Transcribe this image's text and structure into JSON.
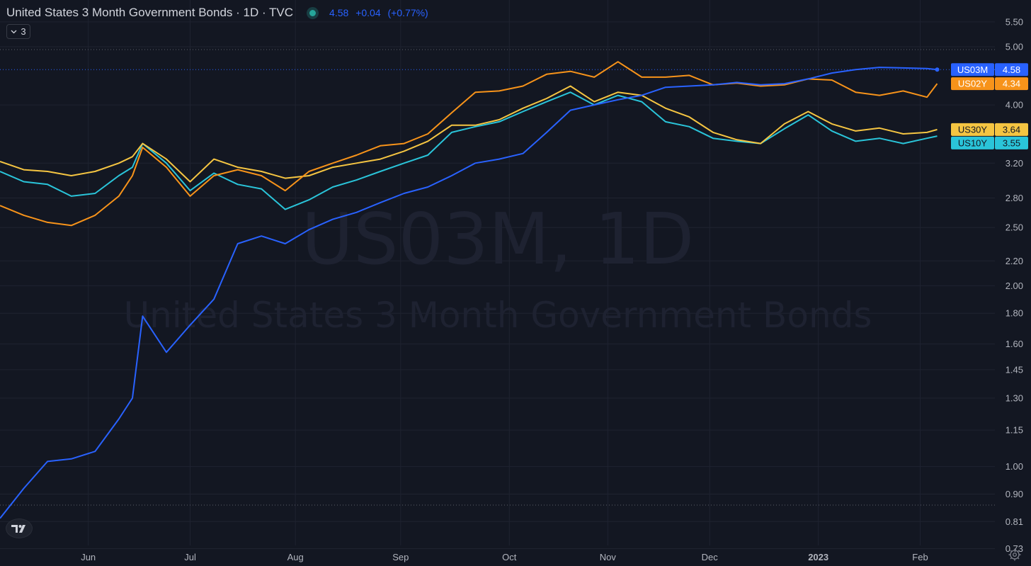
{
  "header": {
    "title": "United States 3 Month Government Bonds · 1D · TVC",
    "last": "4.58",
    "change": "+0.04",
    "change_pct": "(+0.77%)",
    "indicator_count": "3"
  },
  "watermark": {
    "symbol": "US03M, 1D",
    "name": "United States 3 Month Government Bonds"
  },
  "icons": {
    "status": "live-status-dot",
    "legend": "chevron-down-icon",
    "logo": "tradingview-logo",
    "settings": "gear-icon"
  },
  "chart_data": {
    "type": "line",
    "scale": "log",
    "ylim": [
      0.7,
      5.9
    ],
    "y_ticks": [
      "5.50",
      "5.00",
      "4.00",
      "3.20",
      "2.80",
      "2.50",
      "2.20",
      "2.00",
      "1.80",
      "1.60",
      "1.45",
      "1.30",
      "1.15",
      "1.00",
      "0.90",
      "0.81",
      "0.73"
    ],
    "x_ticks": [
      "Jun",
      "Jul",
      "Aug",
      "Sep",
      "Oct",
      "Nov",
      "Dec",
      "2023",
      "Feb"
    ],
    "x_range": [
      "2022-05-06",
      "2023-02-23"
    ],
    "x_tick_dates": [
      "2022-06-01",
      "2022-07-01",
      "2022-08-01",
      "2022-09-01",
      "2022-10-03",
      "2022-11-01",
      "2022-12-01",
      "2023-01-02",
      "2023-02-01"
    ],
    "x": [
      "2022-05-06",
      "2022-05-13",
      "2022-05-20",
      "2022-05-27",
      "2022-06-03",
      "2022-06-10",
      "2022-06-14",
      "2022-06-17",
      "2022-06-24",
      "2022-07-01",
      "2022-07-08",
      "2022-07-15",
      "2022-07-22",
      "2022-07-29",
      "2022-08-05",
      "2022-08-12",
      "2022-08-19",
      "2022-08-26",
      "2022-09-02",
      "2022-09-09",
      "2022-09-16",
      "2022-09-23",
      "2022-09-30",
      "2022-10-07",
      "2022-10-14",
      "2022-10-21",
      "2022-10-28",
      "2022-11-04",
      "2022-11-11",
      "2022-11-18",
      "2022-11-25",
      "2022-12-02",
      "2022-12-09",
      "2022-12-16",
      "2022-12-23",
      "2022-12-30",
      "2023-01-06",
      "2023-01-13",
      "2023-01-20",
      "2023-01-27",
      "2023-02-03",
      "2023-02-06"
    ],
    "series": [
      {
        "name": "US03M",
        "color": "#2962ff",
        "last": "4.58",
        "values": [
          0.82,
          0.92,
          1.02,
          1.03,
          1.06,
          1.2,
          1.3,
          1.78,
          1.55,
          1.72,
          1.9,
          2.35,
          2.42,
          2.35,
          2.48,
          2.58,
          2.65,
          2.75,
          2.85,
          2.92,
          3.05,
          3.2,
          3.25,
          3.32,
          3.6,
          3.92,
          4.0,
          4.08,
          4.15,
          4.28,
          4.3,
          4.32,
          4.36,
          4.32,
          4.34,
          4.42,
          4.52,
          4.58,
          4.62,
          4.61,
          4.6,
          4.58
        ]
      },
      {
        "name": "US02Y",
        "color": "#f7931a",
        "last": "4.34",
        "values": [
          2.72,
          2.62,
          2.55,
          2.52,
          2.62,
          2.82,
          3.05,
          3.4,
          3.15,
          2.82,
          3.05,
          3.12,
          3.05,
          2.88,
          3.1,
          3.2,
          3.3,
          3.42,
          3.45,
          3.58,
          3.88,
          4.2,
          4.22,
          4.3,
          4.5,
          4.55,
          4.45,
          4.72,
          4.45,
          4.45,
          4.48,
          4.32,
          4.35,
          4.3,
          4.32,
          4.42,
          4.4,
          4.2,
          4.15,
          4.22,
          4.12,
          4.34
        ]
      },
      {
        "name": "US30Y",
        "color": "#f5c542",
        "last": "3.64",
        "values": [
          3.22,
          3.12,
          3.1,
          3.05,
          3.1,
          3.2,
          3.28,
          3.45,
          3.25,
          2.98,
          3.25,
          3.15,
          3.1,
          3.02,
          3.05,
          3.15,
          3.2,
          3.25,
          3.35,
          3.48,
          3.7,
          3.7,
          3.78,
          3.95,
          4.1,
          4.3,
          4.05,
          4.2,
          4.15,
          3.95,
          3.82,
          3.6,
          3.5,
          3.45,
          3.72,
          3.9,
          3.72,
          3.62,
          3.66,
          3.58,
          3.6,
          3.64
        ]
      },
      {
        "name": "US10Y",
        "color": "#2ac4d9",
        "last": "3.55",
        "values": [
          3.1,
          2.98,
          2.95,
          2.82,
          2.85,
          3.05,
          3.15,
          3.45,
          3.2,
          2.88,
          3.08,
          2.95,
          2.9,
          2.68,
          2.78,
          2.92,
          3.0,
          3.1,
          3.2,
          3.3,
          3.6,
          3.68,
          3.75,
          3.9,
          4.05,
          4.2,
          4.0,
          4.15,
          4.05,
          3.75,
          3.68,
          3.52,
          3.48,
          3.45,
          3.65,
          3.85,
          3.62,
          3.48,
          3.52,
          3.45,
          3.52,
          3.55
        ]
      }
    ]
  }
}
